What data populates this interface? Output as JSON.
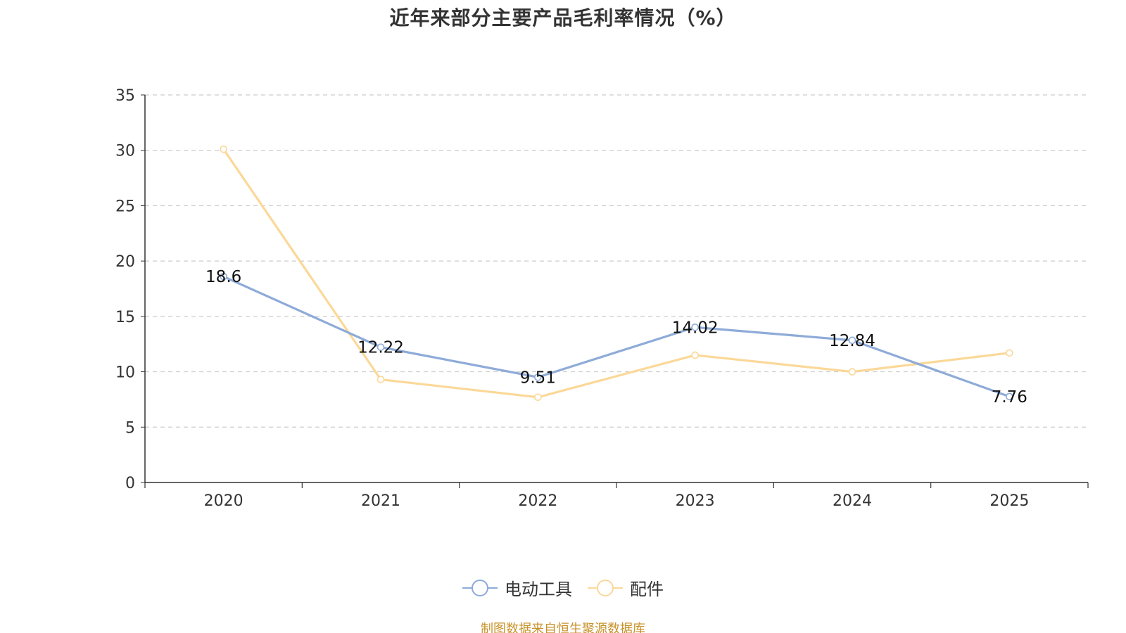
{
  "chart_data": {
    "type": "line",
    "title": "近年来部分主要产品毛利率情况（%）",
    "categories": [
      "2020",
      "2021",
      "2022",
      "2023",
      "2024",
      "2025"
    ],
    "ylim": [
      0,
      35
    ],
    "yticks": [
      0,
      5,
      10,
      15,
      20,
      25,
      30,
      35
    ],
    "grid": true,
    "legend_position": "bottom-center",
    "series": [
      {
        "name": "电动工具",
        "color": "#8eabd8",
        "values": [
          18.6,
          12.22,
          9.51,
          14.02,
          12.84,
          7.76
        ],
        "labels": [
          "18.6",
          "12.22",
          "9.51",
          "14.02",
          "12.84",
          "7.76"
        ]
      },
      {
        "name": "配件",
        "color": "#fbd898",
        "values": [
          30.1,
          9.3,
          7.7,
          11.5,
          10.0,
          11.7
        ],
        "labels": []
      }
    ]
  },
  "source_note": "制图数据来自恒生聚源数据库"
}
